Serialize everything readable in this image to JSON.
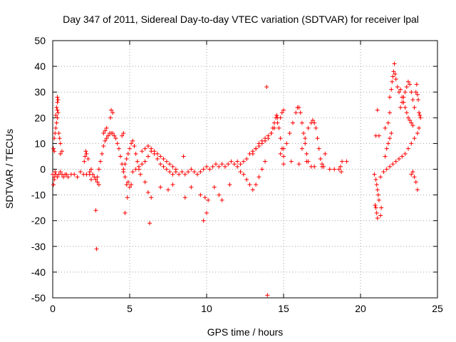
{
  "chart_data": {
    "type": "scatter",
    "title": "Day 347 of 2011, Sidereal Day-to-day VTEC variation (SDTVAR) for receiver lpal",
    "xlabel": "GPS time / hours",
    "ylabel": "SDTVAR / TECUs",
    "xlim": [
      0,
      25
    ],
    "ylim": [
      -50,
      50
    ],
    "xticks": [
      0,
      5,
      10,
      15,
      20,
      25
    ],
    "yticks": [
      -50,
      -40,
      -30,
      -20,
      -10,
      0,
      10,
      20,
      30,
      40,
      50
    ],
    "grid": true,
    "marker": "+",
    "color": "#ff0000",
    "series": [
      {
        "name": "SDTVAR",
        "points": [
          [
            0.0,
            -2
          ],
          [
            0.1,
            -3
          ],
          [
            0.15,
            -1
          ],
          [
            0.2,
            -2
          ],
          [
            0.3,
            -3
          ],
          [
            0.4,
            -2
          ],
          [
            0.5,
            -1
          ],
          [
            0.6,
            -2
          ],
          [
            0.7,
            -3
          ],
          [
            0.8,
            -2
          ],
          [
            0.9,
            -2
          ],
          [
            1.0,
            -3
          ],
          [
            1.2,
            -2
          ],
          [
            1.4,
            -2
          ],
          [
            1.6,
            -3
          ],
          [
            1.8,
            -1
          ],
          [
            2.0,
            -2
          ],
          [
            2.2,
            -2
          ],
          [
            2.4,
            -1
          ],
          [
            2.5,
            0
          ],
          [
            2.6,
            -2
          ],
          [
            2.7,
            -3
          ],
          [
            2.8,
            -4
          ],
          [
            2.9,
            -5
          ],
          [
            3.0,
            -6
          ],
          [
            0.1,
            12
          ],
          [
            0.15,
            14
          ],
          [
            0.2,
            16
          ],
          [
            0.25,
            18
          ],
          [
            0.3,
            20
          ],
          [
            0.35,
            22
          ],
          [
            0.3,
            23
          ],
          [
            0.25,
            24
          ],
          [
            0.3,
            26
          ],
          [
            0.3,
            28
          ],
          [
            0.35,
            27
          ],
          [
            0.2,
            21
          ],
          [
            0.4,
            14
          ],
          [
            0.45,
            12
          ],
          [
            0.5,
            10
          ],
          [
            0.05,
            8
          ],
          [
            0.1,
            -4
          ],
          [
            0.05,
            -6
          ],
          [
            0.1,
            7
          ],
          [
            0.5,
            6
          ],
          [
            0.6,
            7
          ],
          [
            2.1,
            5
          ],
          [
            2.15,
            7
          ],
          [
            2.2,
            6
          ],
          [
            2.3,
            4
          ],
          [
            2.05,
            3
          ],
          [
            2.4,
            -2
          ],
          [
            2.5,
            -4
          ],
          [
            2.9,
            -3
          ],
          [
            3.0,
            0
          ],
          [
            3.1,
            3
          ],
          [
            3.2,
            6
          ],
          [
            3.3,
            9
          ],
          [
            3.4,
            11
          ],
          [
            3.5,
            12
          ],
          [
            3.6,
            13
          ],
          [
            3.7,
            14
          ],
          [
            3.8,
            14
          ],
          [
            3.9,
            14
          ],
          [
            4.0,
            13
          ],
          [
            4.1,
            12
          ],
          [
            4.2,
            10
          ],
          [
            4.3,
            8
          ],
          [
            4.4,
            5
          ],
          [
            4.5,
            2
          ],
          [
            4.6,
            -1
          ],
          [
            4.7,
            -3
          ],
          [
            3.3,
            14
          ],
          [
            3.4,
            15
          ],
          [
            3.5,
            16
          ],
          [
            3.8,
            23
          ],
          [
            3.75,
            20
          ],
          [
            3.9,
            22
          ],
          [
            4.5,
            13
          ],
          [
            4.6,
            14
          ],
          [
            2.8,
            -16
          ],
          [
            2.85,
            -31
          ],
          [
            4.7,
            -17
          ],
          [
            4.85,
            -11
          ],
          [
            4.8,
            -6
          ],
          [
            4.9,
            -5
          ],
          [
            5.0,
            -7
          ],
          [
            5.1,
            -6
          ],
          [
            4.6,
            0
          ],
          [
            4.7,
            2
          ],
          [
            4.8,
            4
          ],
          [
            4.9,
            6
          ],
          [
            5.0,
            8
          ],
          [
            5.1,
            10
          ],
          [
            5.2,
            11
          ],
          [
            5.3,
            9
          ],
          [
            5.4,
            6
          ],
          [
            5.5,
            3
          ],
          [
            5.6,
            0
          ],
          [
            5.7,
            -2
          ],
          [
            5.2,
            -1
          ],
          [
            5.4,
            0
          ],
          [
            5.6,
            1
          ],
          [
            5.8,
            2
          ],
          [
            6.0,
            3
          ],
          [
            6.2,
            5
          ],
          [
            6.4,
            7
          ],
          [
            6.6,
            6
          ],
          [
            6.8,
            4
          ],
          [
            7.0,
            2
          ],
          [
            7.2,
            1
          ],
          [
            7.4,
            0
          ],
          [
            7.6,
            -1
          ],
          [
            7.8,
            -2
          ],
          [
            5.8,
            7
          ],
          [
            6.0,
            8
          ],
          [
            6.2,
            9
          ],
          [
            6.4,
            8
          ],
          [
            6.6,
            7
          ],
          [
            6.8,
            6
          ],
          [
            7.0,
            5
          ],
          [
            7.2,
            4
          ],
          [
            7.4,
            3
          ],
          [
            7.6,
            2
          ],
          [
            7.8,
            1
          ],
          [
            8.0,
            0
          ],
          [
            6.2,
            -9
          ],
          [
            6.3,
            -21
          ],
          [
            6.4,
            -11
          ],
          [
            6.0,
            -5
          ],
          [
            7.0,
            -7
          ],
          [
            7.5,
            -8
          ],
          [
            7.8,
            -6
          ],
          [
            8.0,
            -1
          ],
          [
            8.2,
            -2
          ],
          [
            8.4,
            -1
          ],
          [
            8.6,
            -2
          ],
          [
            8.8,
            -1
          ],
          [
            9.0,
            0
          ],
          [
            9.2,
            -1
          ],
          [
            9.4,
            -2
          ],
          [
            9.6,
            -1
          ],
          [
            9.8,
            0
          ],
          [
            10.0,
            1
          ],
          [
            10.2,
            0
          ],
          [
            10.4,
            1
          ],
          [
            10.6,
            2
          ],
          [
            10.8,
            1
          ],
          [
            11.0,
            2
          ],
          [
            11.2,
            1
          ],
          [
            11.4,
            2
          ],
          [
            11.6,
            3
          ],
          [
            11.8,
            2
          ],
          [
            12.0,
            3
          ],
          [
            8.5,
            5
          ],
          [
            8.6,
            -11
          ],
          [
            9.6,
            -10
          ],
          [
            9.8,
            -20
          ],
          [
            9.9,
            -11
          ],
          [
            10.0,
            -17
          ],
          [
            10.1,
            -12
          ],
          [
            10.8,
            -10
          ],
          [
            11.0,
            -12
          ],
          [
            9.0,
            -7
          ],
          [
            10.5,
            -7
          ],
          [
            11.5,
            -6
          ],
          [
            12.0,
            1
          ],
          [
            12.2,
            2
          ],
          [
            12.4,
            3
          ],
          [
            12.6,
            4
          ],
          [
            12.8,
            6
          ],
          [
            13.0,
            7
          ],
          [
            13.2,
            8
          ],
          [
            13.4,
            9
          ],
          [
            13.6,
            10
          ],
          [
            13.8,
            11
          ],
          [
            14.0,
            12
          ],
          [
            14.2,
            14
          ],
          [
            14.4,
            16
          ],
          [
            14.6,
            18
          ],
          [
            14.8,
            20
          ],
          [
            14.9,
            22
          ],
          [
            15.0,
            23
          ],
          [
            12.2,
            -1
          ],
          [
            12.4,
            -2
          ],
          [
            12.6,
            -4
          ],
          [
            12.8,
            -6
          ],
          [
            13.0,
            -8
          ],
          [
            13.2,
            -6
          ],
          [
            13.4,
            -3
          ],
          [
            13.6,
            0
          ],
          [
            13.8,
            3
          ],
          [
            13.0,
            6
          ],
          [
            13.2,
            8
          ],
          [
            13.4,
            10
          ],
          [
            13.6,
            11
          ],
          [
            13.8,
            12
          ],
          [
            14.0,
            13
          ],
          [
            14.2,
            14
          ],
          [
            14.3,
            16
          ],
          [
            14.4,
            18
          ],
          [
            14.5,
            20
          ],
          [
            14.55,
            21
          ],
          [
            14.6,
            20
          ],
          [
            14.7,
            16
          ],
          [
            14.8,
            12
          ],
          [
            14.9,
            8
          ],
          [
            15.0,
            5
          ],
          [
            14.8,
            6
          ],
          [
            15.0,
            8
          ],
          [
            15.2,
            10
          ],
          [
            15.4,
            14
          ],
          [
            15.6,
            18
          ],
          [
            15.8,
            22
          ],
          [
            15.9,
            24
          ],
          [
            16.0,
            24
          ],
          [
            16.1,
            22
          ],
          [
            16.2,
            18
          ],
          [
            16.3,
            14
          ],
          [
            16.4,
            10
          ],
          [
            16.5,
            6
          ],
          [
            16.6,
            3
          ],
          [
            16.8,
            1
          ],
          [
            16.2,
            8
          ],
          [
            16.4,
            12
          ],
          [
            16.6,
            16
          ],
          [
            16.8,
            18
          ],
          [
            16.9,
            19
          ],
          [
            17.0,
            18
          ],
          [
            17.1,
            16
          ],
          [
            17.2,
            12
          ],
          [
            17.3,
            8
          ],
          [
            17.4,
            4
          ],
          [
            17.5,
            2
          ],
          [
            17.6,
            1
          ],
          [
            15.0,
            2
          ],
          [
            15.5,
            3
          ],
          [
            16.0,
            2
          ],
          [
            16.5,
            3
          ],
          [
            17.0,
            1
          ],
          [
            17.5,
            1
          ],
          [
            18.0,
            0
          ],
          [
            18.3,
            0
          ],
          [
            18.6,
            0
          ],
          [
            18.7,
            1
          ],
          [
            18.75,
            -1
          ],
          [
            13.9,
            32
          ],
          [
            13.95,
            -49
          ],
          [
            17.7,
            6
          ],
          [
            18.8,
            3
          ],
          [
            19.1,
            3
          ],
          [
            20.9,
            -2
          ],
          [
            21.0,
            -4
          ],
          [
            21.05,
            -6
          ],
          [
            21.1,
            -8
          ],
          [
            21.15,
            -10
          ],
          [
            21.0,
            -15
          ],
          [
            21.05,
            -17
          ],
          [
            21.1,
            -19
          ],
          [
            21.3,
            -18
          ],
          [
            21.35,
            -15
          ],
          [
            21.2,
            -12
          ],
          [
            21.1,
            23
          ],
          [
            21.2,
            13
          ],
          [
            21.0,
            13
          ],
          [
            20.95,
            -14
          ],
          [
            21.3,
            -3
          ],
          [
            21.5,
            -1
          ],
          [
            21.7,
            0
          ],
          [
            21.9,
            1
          ],
          [
            22.1,
            2
          ],
          [
            22.3,
            3
          ],
          [
            22.5,
            4
          ],
          [
            22.7,
            5
          ],
          [
            22.9,
            6
          ],
          [
            23.1,
            8
          ],
          [
            23.3,
            10
          ],
          [
            23.5,
            12
          ],
          [
            23.7,
            14
          ],
          [
            23.8,
            16
          ],
          [
            21.6,
            5
          ],
          [
            21.7,
            8
          ],
          [
            21.8,
            10
          ],
          [
            21.9,
            12
          ],
          [
            22.0,
            14
          ],
          [
            21.6,
            16
          ],
          [
            21.8,
            18
          ],
          [
            21.9,
            22
          ],
          [
            21.9,
            28
          ],
          [
            22.0,
            31
          ],
          [
            22.05,
            34
          ],
          [
            22.1,
            36
          ],
          [
            22.15,
            38
          ],
          [
            22.2,
            41
          ],
          [
            22.25,
            37
          ],
          [
            22.3,
            35
          ],
          [
            22.4,
            32
          ],
          [
            22.5,
            30
          ],
          [
            22.6,
            31
          ],
          [
            22.7,
            28
          ],
          [
            22.8,
            26
          ],
          [
            22.9,
            24
          ],
          [
            23.0,
            22
          ],
          [
            23.1,
            20
          ],
          [
            23.2,
            19
          ],
          [
            23.3,
            18
          ],
          [
            23.4,
            17
          ],
          [
            22.6,
            24
          ],
          [
            22.7,
            26
          ],
          [
            22.8,
            28
          ],
          [
            22.9,
            30
          ],
          [
            23.0,
            32
          ],
          [
            23.1,
            34
          ],
          [
            23.2,
            33
          ],
          [
            23.3,
            30
          ],
          [
            23.4,
            27
          ],
          [
            23.5,
            24
          ],
          [
            23.6,
            30
          ],
          [
            23.65,
            33
          ],
          [
            23.7,
            29
          ],
          [
            23.75,
            27
          ],
          [
            23.8,
            22
          ],
          [
            23.85,
            21
          ],
          [
            23.9,
            20
          ],
          [
            23.3,
            -2
          ],
          [
            23.5,
            -3
          ],
          [
            23.6,
            -5
          ],
          [
            23.7,
            -8
          ],
          [
            23.4,
            -1
          ]
        ]
      }
    ]
  }
}
